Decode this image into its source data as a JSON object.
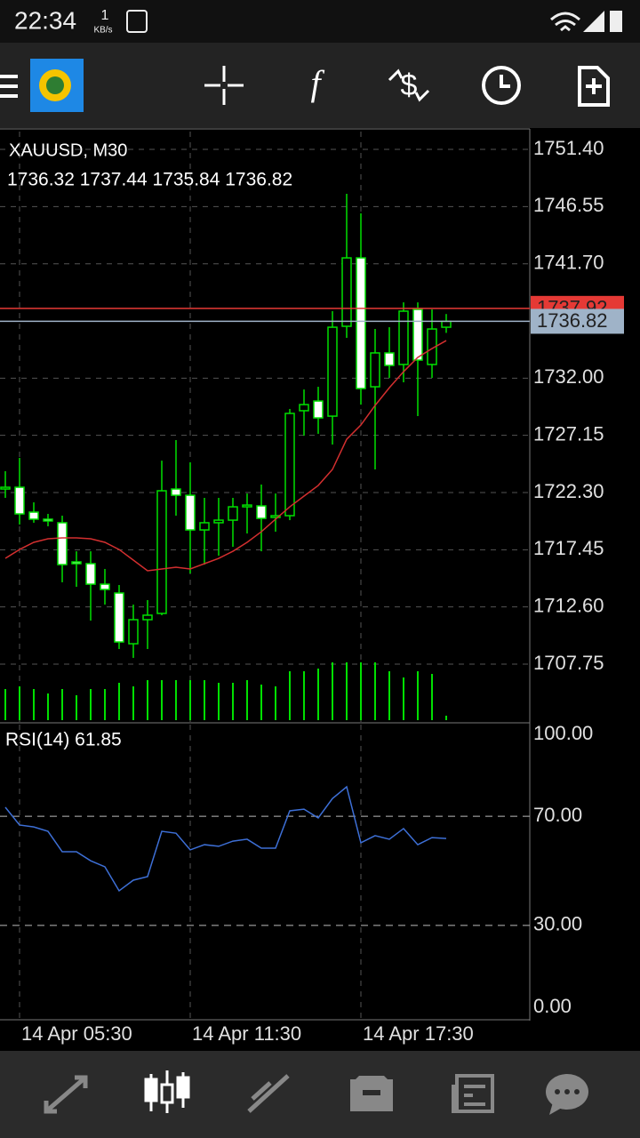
{
  "status_bar": {
    "time": "22:34",
    "speed_value": "1",
    "speed_unit": "KB/s"
  },
  "chart_data": {
    "type": "candlestick",
    "title": "XAUUSD, M30",
    "ohlc_header": "1736.32 1737.44 1735.84 1736.82",
    "categories": [
      null,
      "14 Apr 05:30",
      null,
      null,
      null,
      null,
      null,
      null,
      null,
      null,
      null,
      null,
      null,
      "14 Apr 11:30",
      null,
      null,
      null,
      null,
      null,
      null,
      null,
      null,
      null,
      null,
      null,
      "14 Apr 17:30",
      null,
      null,
      null,
      null,
      null,
      null
    ],
    "open": [
      1722.6,
      1722.75,
      1720.64,
      1720.04,
      1719.74,
      1716.42,
      1716.27,
      1714.53,
      1713.78,
      1709.48,
      1711.52,
      1712.05,
      1722.6,
      1722.07,
      1719.13,
      1719.74,
      1719.96,
      1721.09,
      1721.17,
      1720.19,
      1720.34,
      1729.24,
      1730.06,
      1728.78,
      1736.4,
      1742.2,
      1731.27,
      1734.14,
      1733.16,
      1737.83,
      1733.16,
      1736.32
    ],
    "high": [
      1724.11,
      1725.24,
      1721.47,
      1720.49,
      1720.34,
      1717.32,
      1717.32,
      1715.82,
      1714.46,
      1712.8,
      1713.18,
      1725.01,
      1726.75,
      1724.86,
      1721.85,
      1721.85,
      1721.85,
      1722.22,
      1722.98,
      1722.22,
      1729.39,
      1731.04,
      1731.27,
      1737.68,
      1747.63,
      1745.97,
      1736.17,
      1736.32,
      1738.43,
      1738.43,
      1737.83,
      1737.44
    ],
    "low": [
      1721.85,
      1719.59,
      1719.74,
      1719.44,
      1714.69,
      1714.31,
      1711.44,
      1712.8,
      1709.03,
      1708.28,
      1709.03,
      1711.9,
      1720.34,
      1715.44,
      1716.19,
      1716.95,
      1717.7,
      1718.83,
      1717.32,
      1718.98,
      1719.96,
      1727.12,
      1727.28,
      1726.37,
      1735.42,
      1729.76,
      1724.26,
      1732.02,
      1731.65,
      1728.78,
      1732.02,
      1735.84
    ],
    "close": [
      1722.75,
      1720.49,
      1720.04,
      1719.89,
      1716.19,
      1716.27,
      1714.53,
      1714.08,
      1709.63,
      1711.52,
      1711.9,
      1722.45,
      1722.07,
      1719.13,
      1719.74,
      1719.96,
      1721.09,
      1721.24,
      1720.11,
      1720.34,
      1729.01,
      1729.76,
      1728.63,
      1736.32,
      1742.2,
      1731.12,
      1734.14,
      1733.08,
      1737.68,
      1733.53,
      1736.17,
      1736.82
    ],
    "candle_color": "#00e000",
    "up_fill": "#000000",
    "down_fill": "#ffffff",
    "moving_average": {
      "color": "#d32f2f",
      "values": [
        1716.72,
        1717.47,
        1718.08,
        1718.38,
        1718.46,
        1718.46,
        1718.38,
        1718.08,
        1717.47,
        1716.57,
        1715.67,
        1715.82,
        1715.97,
        1715.82,
        1716.27,
        1716.72,
        1717.32,
        1718.08,
        1718.98,
        1720.04,
        1721.09,
        1722.0,
        1722.9,
        1724.26,
        1726.82,
        1728.03,
        1729.69,
        1731.19,
        1732.55,
        1733.76,
        1734.51,
        1735.19
      ]
    },
    "volume": {
      "color": "#00e000",
      "values": [
        35,
        38,
        35,
        30,
        35,
        28,
        35,
        35,
        42,
        38,
        45,
        45,
        45,
        45,
        45,
        42,
        42,
        45,
        40,
        38,
        55,
        55,
        58,
        65,
        65,
        65,
        65,
        55,
        48,
        55,
        52,
        5
      ]
    },
    "ylim": [
      1702.85,
      1752.91
    ],
    "yticks": [
      {
        "value": 1751.4,
        "label": "1751.40"
      },
      {
        "value": 1746.55,
        "label": "1746.55"
      },
      {
        "value": 1741.7,
        "label": "1741.70"
      },
      {
        "value": 1732.0,
        "label": "1732.00"
      },
      {
        "value": 1727.15,
        "label": "1727.15"
      },
      {
        "value": 1722.3,
        "label": "1722.30"
      },
      {
        "value": 1717.45,
        "label": "1717.45"
      },
      {
        "value": 1712.6,
        "label": "1712.60"
      },
      {
        "value": 1707.75,
        "label": "1707.75"
      }
    ],
    "grid": true,
    "price_lines": [
      {
        "value": 1737.92,
        "label": "1737.92",
        "color": "#e53935"
      },
      {
        "value": 1736.82,
        "label": "1736.82",
        "color": "#9fb3c8"
      }
    ],
    "rsi": {
      "label": "RSI(14) 61.85",
      "color": "#3d6fd6",
      "values": [
        73.3,
        66.8,
        66.1,
        64.5,
        57.0,
        57.0,
        53.7,
        51.5,
        42.7,
        46.6,
        47.9,
        64.5,
        63.8,
        57.7,
        59.6,
        59.0,
        60.9,
        61.6,
        58.3,
        58.3,
        72.0,
        72.6,
        69.4,
        76.5,
        80.8,
        60.3,
        62.9,
        61.6,
        65.5,
        59.6,
        62.2,
        61.85
      ],
      "ylim": [
        -3.9,
        103.6
      ],
      "yticks": [
        {
          "value": 100,
          "label": "100.00"
        },
        {
          "value": 70,
          "label": "70.00",
          "level": true
        },
        {
          "value": 30,
          "label": "30.00",
          "level": true
        },
        {
          "value": 0,
          "label": "0.00"
        }
      ]
    }
  }
}
